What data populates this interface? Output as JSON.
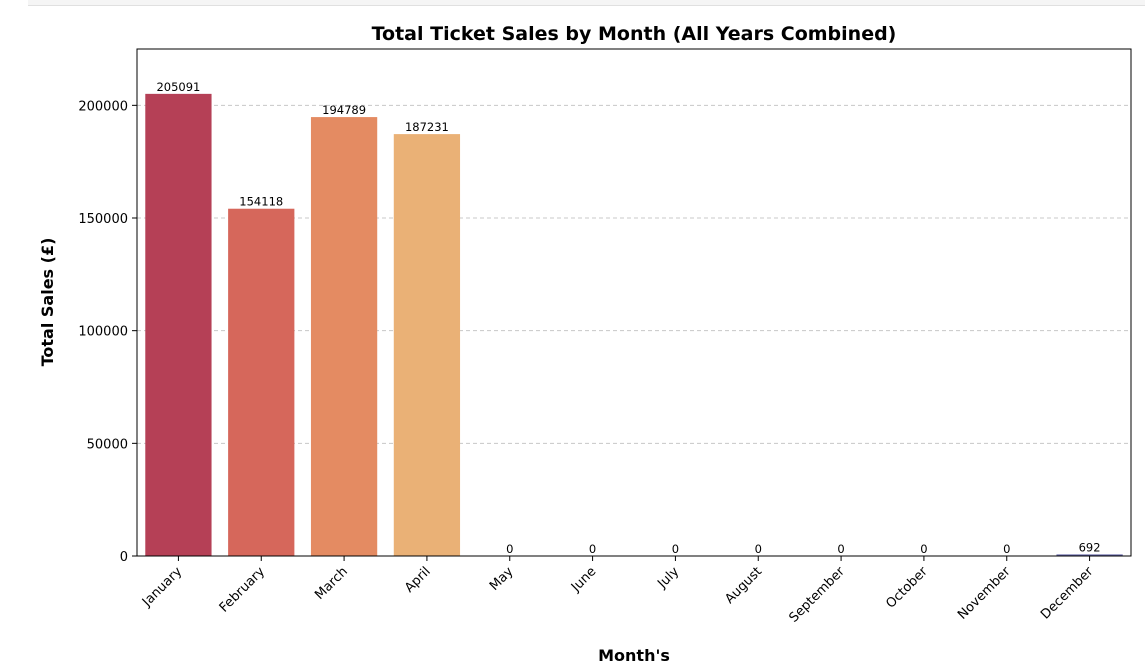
{
  "chart_data": {
    "type": "bar",
    "title": "Total Ticket Sales by Month (All Years Combined)",
    "xlabel": "Month's",
    "ylabel": "Total Sales (£)",
    "categories": [
      "January",
      "February",
      "March",
      "April",
      "May",
      "June",
      "July",
      "August",
      "September",
      "October",
      "November",
      "December"
    ],
    "values": [
      205091,
      154118,
      194789,
      187231,
      0,
      0,
      0,
      0,
      0,
      0,
      0,
      692
    ],
    "data_labels": [
      "205091",
      "154118",
      "194789",
      "187231",
      "0",
      "0",
      "0",
      "0",
      "0",
      "0",
      "0",
      "692"
    ],
    "colors": [
      "#b54056",
      "#d6675b",
      "#e48b62",
      "#eab176",
      "#f5e5a0",
      "#f5f3b0",
      "#e2f3a4",
      "#b6e0a4",
      "#86c9a5",
      "#5fa7b3",
      "#4e80b6",
      "#5e5fa3"
    ],
    "ylim": [
      0,
      225000
    ],
    "yticks": [
      0,
      50000,
      100000,
      150000,
      200000
    ],
    "ytick_labels": [
      "0",
      "50000",
      "100000",
      "150000",
      "200000"
    ],
    "grid": "y-dashed",
    "legend": "none"
  }
}
